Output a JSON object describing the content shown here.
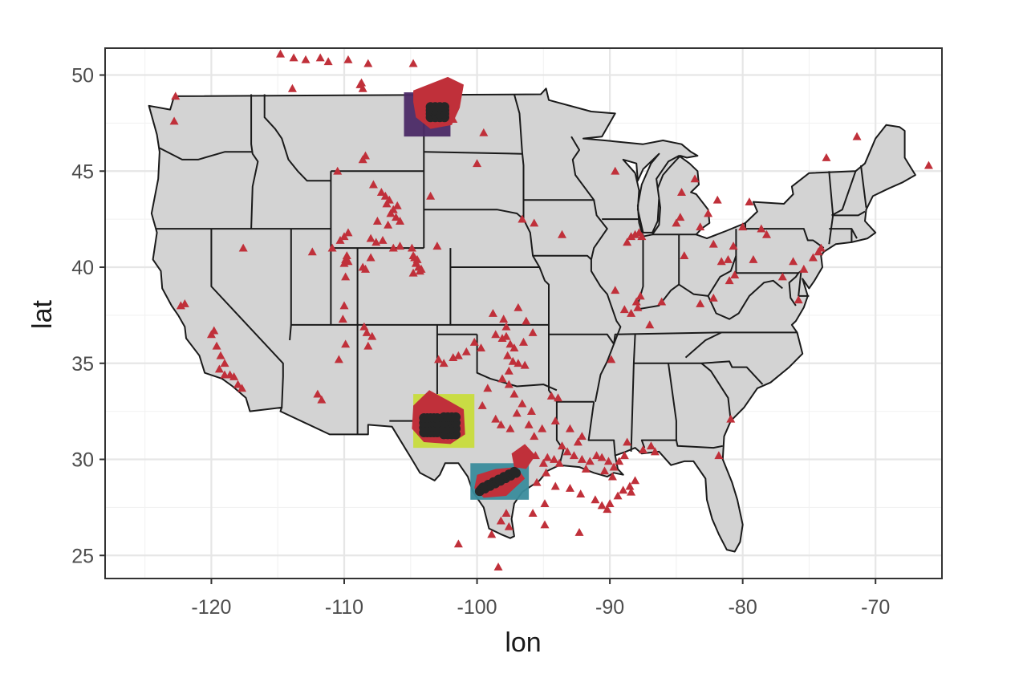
{
  "chart_data": {
    "type": "scatter",
    "xlabel": "lon",
    "ylabel": "lat",
    "xlim": [
      -128,
      -65
    ],
    "ylim": [
      23.8,
      51.4
    ],
    "x_ticks": [
      -120,
      -110,
      -100,
      -90,
      -80,
      -70
    ],
    "y_ticks": [
      25,
      30,
      35,
      40,
      45,
      50
    ],
    "x_tick_labels": [
      "-120",
      "-110",
      "-100",
      "-90",
      "-80",
      "-70"
    ],
    "y_tick_labels": [
      "25",
      "30",
      "35",
      "40",
      "45",
      "50"
    ],
    "grid": true,
    "legend": "none",
    "colors": {
      "panel": "#ffffff",
      "grid": "#e6e6e6",
      "land": "#d3d3d3",
      "state_border": "#1a1a1a",
      "triangle": "#c0303a",
      "cluster_point": "#262626"
    },
    "highlight_boxes": [
      {
        "region": "north",
        "lon": [
          -105.5,
          -102.0
        ],
        "lat": [
          46.8,
          49.1
        ],
        "color": "#4b2a66"
      },
      {
        "region": "west-texas",
        "lon": [
          -104.8,
          -100.2
        ],
        "lat": [
          30.6,
          33.4
        ],
        "color": "#c8dc3c"
      },
      {
        "region": "south-texas",
        "lon": [
          -100.5,
          -96.1
        ],
        "lat": [
          27.9,
          29.8
        ],
        "color": "#3a8c9c"
      }
    ],
    "triangle_points": [
      [
        -114.8,
        51.1
      ],
      [
        -113.8,
        50.9
      ],
      [
        -112.9,
        50.8
      ],
      [
        -111.8,
        50.9
      ],
      [
        -111.2,
        50.7
      ],
      [
        -109.7,
        50.8
      ],
      [
        -108.2,
        50.6
      ],
      [
        -104.8,
        50.6
      ],
      [
        -113.9,
        49.3
      ],
      [
        -108.7,
        49.6
      ],
      [
        -108.6,
        49.3
      ],
      [
        -108.8,
        49.5
      ],
      [
        -122.7,
        48.9
      ],
      [
        -122.8,
        47.6
      ],
      [
        -108.4,
        45.8
      ],
      [
        -108.6,
        45.6
      ],
      [
        -110.5,
        45.0
      ],
      [
        -107.8,
        44.3
      ],
      [
        -100.0,
        45.4
      ],
      [
        -101.8,
        47.7
      ],
      [
        -99.5,
        47.0
      ],
      [
        -107.2,
        43.9
      ],
      [
        -106.9,
        43.7
      ],
      [
        -106.6,
        43.5
      ],
      [
        -106.8,
        43.3
      ],
      [
        -106.3,
        43.0
      ],
      [
        -106.0,
        43.2
      ],
      [
        -106.5,
        42.8
      ],
      [
        -107.5,
        42.4
      ],
      [
        -106.1,
        42.6
      ],
      [
        -106.7,
        42.2
      ],
      [
        -105.8,
        42.4
      ],
      [
        -108.0,
        41.5
      ],
      [
        -107.6,
        41.3
      ],
      [
        -106.3,
        41.0
      ],
      [
        -105.8,
        41.1
      ],
      [
        -107.1,
        41.4
      ],
      [
        -104.9,
        41.0
      ],
      [
        -103.0,
        41.1
      ],
      [
        -109.7,
        41.8
      ],
      [
        -110.0,
        41.6
      ],
      [
        -110.3,
        41.4
      ],
      [
        -104.8,
        40.6
      ],
      [
        -112.4,
        40.8
      ],
      [
        -110.9,
        41.0
      ],
      [
        -109.8,
        40.6
      ],
      [
        -108.0,
        40.5
      ],
      [
        -108.6,
        40.0
      ],
      [
        -110.0,
        40.2
      ],
      [
        -109.9,
        40.4
      ],
      [
        -109.7,
        40.3
      ],
      [
        -108.4,
        39.9
      ],
      [
        -109.9,
        39.5
      ],
      [
        -104.5,
        40.4
      ],
      [
        -104.6,
        40.2
      ],
      [
        -104.4,
        40.0
      ],
      [
        -104.2,
        39.9
      ],
      [
        -104.8,
        39.7
      ],
      [
        -104.7,
        40.5
      ],
      [
        -104.3,
        39.8
      ],
      [
        -117.6,
        41.0
      ],
      [
        -122.0,
        38.1
      ],
      [
        -122.3,
        38.0
      ],
      [
        -110.0,
        38.0
      ],
      [
        -110.1,
        37.3
      ],
      [
        -108.5,
        36.9
      ],
      [
        -108.3,
        36.6
      ],
      [
        -107.9,
        36.4
      ],
      [
        -108.2,
        35.9
      ],
      [
        -110.4,
        35.2
      ],
      [
        -119.8,
        36.7
      ],
      [
        -120.0,
        36.5
      ],
      [
        -119.6,
        35.9
      ],
      [
        -119.3,
        35.4
      ],
      [
        -119.4,
        34.7
      ],
      [
        -119.0,
        34.4
      ],
      [
        -118.6,
        34.4
      ],
      [
        -118.3,
        34.3
      ],
      [
        -118.0,
        33.9
      ],
      [
        -117.7,
        33.7
      ],
      [
        -119.0,
        35.0
      ],
      [
        -112.0,
        33.4
      ],
      [
        -111.7,
        33.1
      ],
      [
        -109.9,
        36.0
      ],
      [
        -102.9,
        35.2
      ],
      [
        -102.5,
        35.0
      ],
      [
        -101.8,
        35.3
      ],
      [
        -101.4,
        35.4
      ],
      [
        -100.8,
        35.6
      ],
      [
        -100.2,
        36.1
      ],
      [
        -99.7,
        35.8
      ],
      [
        -98.6,
        36.5
      ],
      [
        -98.1,
        36.3
      ],
      [
        -97.8,
        36.4
      ],
      [
        -97.5,
        36.0
      ],
      [
        -97.2,
        35.8
      ],
      [
        -97.7,
        35.4
      ],
      [
        -97.3,
        35.1
      ],
      [
        -96.9,
        35.0
      ],
      [
        -97.6,
        34.6
      ],
      [
        -96.4,
        34.9
      ],
      [
        -97.8,
        36.9
      ],
      [
        -96.5,
        36.1
      ],
      [
        -95.8,
        36.6
      ],
      [
        -98.8,
        37.6
      ],
      [
        -98.0,
        37.3
      ],
      [
        -96.3,
        37.2
      ],
      [
        -98.1,
        34.2
      ],
      [
        -97.6,
        33.9
      ],
      [
        -97.2,
        33.4
      ],
      [
        -96.6,
        32.9
      ],
      [
        -95.9,
        32.5
      ],
      [
        -96.1,
        31.8
      ],
      [
        -95.7,
        31.2
      ],
      [
        -95.1,
        31.6
      ],
      [
        -94.1,
        32.0
      ],
      [
        -94.4,
        33.3
      ],
      [
        -93.9,
        33.2
      ],
      [
        -98.6,
        32.1
      ],
      [
        -98.2,
        31.8
      ],
      [
        -97.5,
        31.6
      ],
      [
        -97.0,
        32.4
      ],
      [
        -99.2,
        33.7
      ],
      [
        -99.6,
        32.8
      ],
      [
        -96.3,
        30.4
      ],
      [
        -95.6,
        30.2
      ],
      [
        -95.0,
        29.8
      ],
      [
        -94.7,
        30.1
      ],
      [
        -94.2,
        30.0
      ],
      [
        -93.8,
        29.8
      ],
      [
        -93.2,
        30.4
      ],
      [
        -92.7,
        30.2
      ],
      [
        -92.1,
        30.0
      ],
      [
        -91.5,
        29.9
      ],
      [
        -91.0,
        30.2
      ],
      [
        -90.6,
        30.1
      ],
      [
        -90.1,
        29.9
      ],
      [
        -89.7,
        29.6
      ],
      [
        -89.3,
        29.9
      ],
      [
        -88.9,
        30.2
      ],
      [
        -93.6,
        30.7
      ],
      [
        -92.4,
        30.9
      ],
      [
        -93.0,
        31.6
      ],
      [
        -92.1,
        31.2
      ],
      [
        -94.8,
        29.3
      ],
      [
        -95.5,
        28.8
      ],
      [
        -94.1,
        28.6
      ],
      [
        -93.0,
        28.5
      ],
      [
        -92.2,
        28.2
      ],
      [
        -91.1,
        27.9
      ],
      [
        -90.6,
        27.6
      ],
      [
        -90.2,
        27.4
      ],
      [
        -90.0,
        27.7
      ],
      [
        -89.4,
        28.1
      ],
      [
        -89.0,
        28.4
      ],
      [
        -88.5,
        28.6
      ],
      [
        -88.1,
        28.9
      ],
      [
        -88.4,
        28.3
      ],
      [
        -94.9,
        27.7
      ],
      [
        -95.8,
        27.2
      ],
      [
        -94.9,
        26.6
      ],
      [
        -92.3,
        26.2
      ],
      [
        -101.4,
        25.6
      ],
      [
        -98.4,
        24.4
      ],
      [
        -98.9,
        26.1
      ],
      [
        -97.6,
        26.5
      ],
      [
        -97.8,
        27.2
      ],
      [
        -98.2,
        26.8
      ],
      [
        -89.8,
        29.1
      ],
      [
        -90.4,
        29.4
      ],
      [
        -91.8,
        29.5
      ],
      [
        -87.5,
        30.5
      ],
      [
        -88.7,
        30.9
      ],
      [
        -86.9,
        30.7
      ],
      [
        -86.6,
        30.4
      ],
      [
        -93.6,
        41.7
      ],
      [
        -95.7,
        42.3
      ],
      [
        -88.4,
        41.6
      ],
      [
        -88.1,
        41.7
      ],
      [
        -87.8,
        41.8
      ],
      [
        -88.7,
        41.3
      ],
      [
        -87.6,
        41.6
      ],
      [
        -89.6,
        38.8
      ],
      [
        -87.7,
        38.5
      ],
      [
        -88.0,
        38.2
      ],
      [
        -87.9,
        37.9
      ],
      [
        -88.4,
        37.6
      ],
      [
        -88.9,
        37.8
      ],
      [
        -86.1,
        38.2
      ],
      [
        -83.2,
        38.1
      ],
      [
        -87.0,
        37.0
      ],
      [
        -89.9,
        35.2
      ],
      [
        -84.6,
        43.9
      ],
      [
        -83.6,
        44.6
      ],
      [
        -85.0,
        42.3
      ],
      [
        -84.7,
        42.6
      ],
      [
        -82.6,
        42.8
      ],
      [
        -81.9,
        43.5
      ],
      [
        -83.2,
        42.1
      ],
      [
        -82.2,
        41.2
      ],
      [
        -80.7,
        41.1
      ],
      [
        -81.6,
        40.3
      ],
      [
        -81.1,
        40.4
      ],
      [
        -84.4,
        40.6
      ],
      [
        -82.2,
        38.4
      ],
      [
        -80.6,
        39.6
      ],
      [
        -81.0,
        39.3
      ],
      [
        -80.0,
        42.1
      ],
      [
        -78.6,
        42.0
      ],
      [
        -78.2,
        41.7
      ],
      [
        -79.5,
        43.4
      ],
      [
        -76.2,
        40.3
      ],
      [
        -75.4,
        39.9
      ],
      [
        -74.7,
        40.5
      ],
      [
        -74.3,
        40.8
      ],
      [
        -74.1,
        41.0
      ],
      [
        -79.2,
        40.4
      ],
      [
        -77.0,
        39.5
      ],
      [
        -75.8,
        38.3
      ],
      [
        -73.7,
        45.7
      ],
      [
        -71.4,
        46.8
      ],
      [
        -66.0,
        45.3
      ],
      [
        -80.9,
        32.1
      ],
      [
        -81.8,
        30.2
      ],
      [
        -89.6,
        45.0
      ],
      [
        -96.6,
        42.5
      ],
      [
        -103.5,
        43.7
      ],
      [
        -96.9,
        37.9
      ]
    ]
  }
}
